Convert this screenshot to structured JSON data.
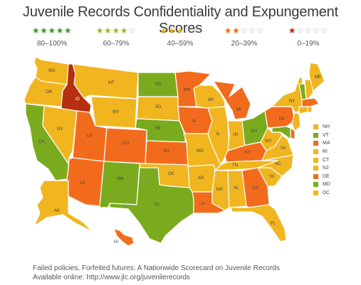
{
  "title": "Juvenile Records Confidentiality and Expungement Scores",
  "colors": {
    "green": "#7aab1e",
    "lightgreen": "#8fba2d",
    "yellow": "#f0b51f",
    "orange": "#f26b1d",
    "red": "#b5300f",
    "border": "#ffffff"
  },
  "legend": [
    {
      "filled": "★★★★★",
      "empty": "",
      "color": "#3e9a23",
      "range": "80–100%"
    },
    {
      "filled": "★★★★",
      "empty": "☆",
      "color": "#8fba2d",
      "range": "60–79%"
    },
    {
      "filled": "★★★",
      "empty": "☆☆",
      "color": "#f0b51f",
      "range": "40–59%"
    },
    {
      "filled": "★★",
      "empty": "☆☆☆",
      "color": "#f26b1d",
      "range": "20–39%"
    },
    {
      "filled": "★",
      "empty": "☆☆☆☆",
      "color": "#b5300f",
      "range": "0–19%"
    }
  ],
  "states": [
    {
      "abbr": "WA",
      "color": "yellow"
    },
    {
      "abbr": "OR",
      "color": "yellow"
    },
    {
      "abbr": "CA",
      "color": "green"
    },
    {
      "abbr": "ID",
      "color": "red"
    },
    {
      "abbr": "NV",
      "color": "yellow"
    },
    {
      "abbr": "MT",
      "color": "yellow"
    },
    {
      "abbr": "WY",
      "color": "yellow"
    },
    {
      "abbr": "UT",
      "color": "orange"
    },
    {
      "abbr": "AZ",
      "color": "orange"
    },
    {
      "abbr": "CO",
      "color": "orange"
    },
    {
      "abbr": "NM",
      "color": "green"
    },
    {
      "abbr": "ND",
      "color": "green"
    },
    {
      "abbr": "SD",
      "color": "yellow"
    },
    {
      "abbr": "NE",
      "color": "green"
    },
    {
      "abbr": "KS",
      "color": "orange"
    },
    {
      "abbr": "OK",
      "color": "yellow"
    },
    {
      "abbr": "TX",
      "color": "green"
    },
    {
      "abbr": "MN",
      "color": "orange"
    },
    {
      "abbr": "IA",
      "color": "orange"
    },
    {
      "abbr": "MO",
      "color": "yellow"
    },
    {
      "abbr": "AR",
      "color": "yellow"
    },
    {
      "abbr": "LA",
      "color": "orange"
    },
    {
      "abbr": "WI",
      "color": "yellow"
    },
    {
      "abbr": "IL",
      "color": "yellow"
    },
    {
      "abbr": "MI",
      "color": "orange"
    },
    {
      "abbr": "IN",
      "color": "yellow"
    },
    {
      "abbr": "OH",
      "color": "green"
    },
    {
      "abbr": "KY",
      "color": "orange"
    },
    {
      "abbr": "TN",
      "color": "yellow"
    },
    {
      "abbr": "MS",
      "color": "yellow"
    },
    {
      "abbr": "AL",
      "color": "yellow"
    },
    {
      "abbr": "GA",
      "color": "orange"
    },
    {
      "abbr": "FL",
      "color": "yellow"
    },
    {
      "abbr": "SC",
      "color": "yellow"
    },
    {
      "abbr": "NC",
      "color": "yellow"
    },
    {
      "abbr": "VA",
      "color": "yellow"
    },
    {
      "abbr": "WV",
      "color": "yellow"
    },
    {
      "abbr": "PA",
      "color": "orange"
    },
    {
      "abbr": "NY",
      "color": "yellow"
    },
    {
      "abbr": "ME",
      "color": "yellow"
    },
    {
      "abbr": "AK",
      "color": "yellow"
    },
    {
      "abbr": "HI",
      "color": "orange"
    }
  ],
  "small_states": [
    {
      "abbr": "NH",
      "color": "yellow"
    },
    {
      "abbr": "VT",
      "color": "green"
    },
    {
      "abbr": "MA",
      "color": "orange"
    },
    {
      "abbr": "RI",
      "color": "yellow"
    },
    {
      "abbr": "CT",
      "color": "yellow"
    },
    {
      "abbr": "NJ",
      "color": "yellow"
    },
    {
      "abbr": "DE",
      "color": "orange"
    },
    {
      "abbr": "MD",
      "color": "green"
    },
    {
      "abbr": "DC",
      "color": "yellow"
    }
  ],
  "footer": {
    "line1": "Failed policies, Forfeited futures: A Nationwide Scorecard on Juvenile Records",
    "line2": "Available online: http://www.jlc.org/juvenilerecords"
  }
}
